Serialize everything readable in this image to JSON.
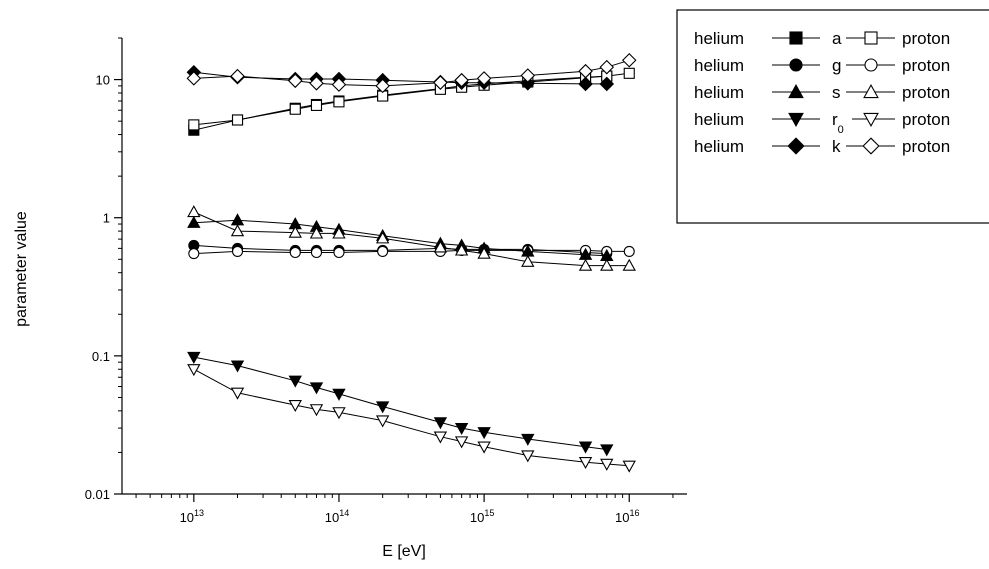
{
  "chart_data": {
    "type": "line",
    "x_scale": "log",
    "y_scale": "log",
    "xlabel": "E [eV]",
    "ylabel": "parameter value",
    "xlim": [
      3200000000000.0,
      2.5e+16
    ],
    "ylim": [
      0.01,
      20
    ],
    "x_ticks": [
      {
        "value": 10000000000000.0,
        "base": "10",
        "exp": "13"
      },
      {
        "value": 100000000000000.0,
        "base": "10",
        "exp": "14"
      },
      {
        "value": 1000000000000000.0,
        "base": "10",
        "exp": "15"
      },
      {
        "value": 1e+16,
        "base": "10",
        "exp": "16"
      }
    ],
    "y_ticks": [
      {
        "value": 0.01,
        "label": "0.01"
      },
      {
        "value": 0.1,
        "label": "0.1"
      },
      {
        "value": 1,
        "label": "1"
      },
      {
        "value": 10,
        "label": "10"
      }
    ],
    "legend": {
      "position": "top-right",
      "rows": [
        {
          "left": "helium",
          "param": "a",
          "sub": "",
          "right": "proton",
          "marker": "square"
        },
        {
          "left": "helium",
          "param": "g",
          "sub": "",
          "right": "proton",
          "marker": "circle"
        },
        {
          "left": "helium",
          "param": "s",
          "sub": "",
          "right": "proton",
          "marker": "triangle-up"
        },
        {
          "left": "helium",
          "param": "r",
          "sub": "0",
          "right": "proton",
          "marker": "triangle-down"
        },
        {
          "left": "helium",
          "param": "k",
          "sub": "",
          "right": "proton",
          "marker": "diamond"
        }
      ]
    },
    "series": [
      {
        "name": "helium a",
        "marker": "square",
        "filled": true,
        "points": [
          [
            10000000000000.0,
            4.3
          ],
          [
            20000000000000.0,
            5.1
          ],
          [
            50000000000000.0,
            6.2
          ],
          [
            70000000000000.0,
            6.6
          ],
          [
            100000000000000.0,
            7.0
          ],
          [
            200000000000000.0,
            7.7
          ],
          [
            500000000000000.0,
            8.6
          ],
          [
            700000000000000.0,
            9.0
          ],
          [
            1000000000000000.0,
            9.3
          ],
          [
            2000000000000000.0,
            9.8
          ],
          [
            5000000000000000.0,
            10.4
          ],
          [
            7000000000000000.0,
            10.6
          ]
        ]
      },
      {
        "name": "proton a",
        "marker": "square",
        "filled": false,
        "points": [
          [
            10000000000000.0,
            4.7
          ],
          [
            20000000000000.0,
            5.1
          ],
          [
            50000000000000.0,
            6.1
          ],
          [
            70000000000000.0,
            6.5
          ],
          [
            100000000000000.0,
            6.9
          ],
          [
            200000000000000.0,
            7.6
          ],
          [
            500000000000000.0,
            8.5
          ],
          [
            700000000000000.0,
            8.8
          ],
          [
            1000000000000000.0,
            9.1
          ],
          [
            2000000000000000.0,
            9.6
          ],
          [
            5000000000000000.0,
            10.3
          ],
          [
            7000000000000000.0,
            10.6
          ],
          [
            1e+16,
            11.1
          ]
        ]
      },
      {
        "name": "helium g",
        "marker": "circle",
        "filled": true,
        "points": [
          [
            10000000000000.0,
            0.63
          ],
          [
            20000000000000.0,
            0.6
          ],
          [
            50000000000000.0,
            0.58
          ],
          [
            70000000000000.0,
            0.58
          ],
          [
            100000000000000.0,
            0.58
          ],
          [
            200000000000000.0,
            0.58
          ],
          [
            500000000000000.0,
            0.6
          ],
          [
            700000000000000.0,
            0.59
          ],
          [
            1000000000000000.0,
            0.59
          ],
          [
            2000000000000000.0,
            0.59
          ],
          [
            5000000000000000.0,
            0.56
          ],
          [
            7000000000000000.0,
            0.55
          ]
        ]
      },
      {
        "name": "proton g",
        "marker": "circle",
        "filled": false,
        "points": [
          [
            10000000000000.0,
            0.55
          ],
          [
            20000000000000.0,
            0.57
          ],
          [
            50000000000000.0,
            0.56
          ],
          [
            70000000000000.0,
            0.56
          ],
          [
            100000000000000.0,
            0.56
          ],
          [
            200000000000000.0,
            0.57
          ],
          [
            500000000000000.0,
            0.57
          ],
          [
            700000000000000.0,
            0.58
          ],
          [
            1000000000000000.0,
            0.58
          ],
          [
            2000000000000000.0,
            0.58
          ],
          [
            5000000000000000.0,
            0.58
          ],
          [
            7000000000000000.0,
            0.57
          ],
          [
            1e+16,
            0.57
          ]
        ]
      },
      {
        "name": "helium s",
        "marker": "triangle-up",
        "filled": true,
        "points": [
          [
            10000000000000.0,
            0.92
          ],
          [
            20000000000000.0,
            0.96
          ],
          [
            50000000000000.0,
            0.9
          ],
          [
            70000000000000.0,
            0.86
          ],
          [
            100000000000000.0,
            0.82
          ],
          [
            200000000000000.0,
            0.74
          ],
          [
            500000000000000.0,
            0.65
          ],
          [
            700000000000000.0,
            0.63
          ],
          [
            1000000000000000.0,
            0.6
          ],
          [
            2000000000000000.0,
            0.57
          ],
          [
            5000000000000000.0,
            0.54
          ],
          [
            7000000000000000.0,
            0.53
          ]
        ]
      },
      {
        "name": "proton s",
        "marker": "triangle-up",
        "filled": false,
        "points": [
          [
            10000000000000.0,
            1.1
          ],
          [
            20000000000000.0,
            0.8
          ],
          [
            50000000000000.0,
            0.78
          ],
          [
            70000000000000.0,
            0.77
          ],
          [
            100000000000000.0,
            0.77
          ],
          [
            200000000000000.0,
            0.71
          ],
          [
            500000000000000.0,
            0.61
          ],
          [
            700000000000000.0,
            0.58
          ],
          [
            1000000000000000.0,
            0.55
          ],
          [
            2000000000000000.0,
            0.48
          ],
          [
            5000000000000000.0,
            0.45
          ],
          [
            7000000000000000.0,
            0.45
          ],
          [
            1e+16,
            0.45
          ]
        ]
      },
      {
        "name": "helium r0",
        "marker": "triangle-down",
        "filled": true,
        "points": [
          [
            10000000000000.0,
            0.098
          ],
          [
            20000000000000.0,
            0.085
          ],
          [
            50000000000000.0,
            0.066
          ],
          [
            70000000000000.0,
            0.059
          ],
          [
            100000000000000.0,
            0.053
          ],
          [
            200000000000000.0,
            0.043
          ],
          [
            500000000000000.0,
            0.033
          ],
          [
            700000000000000.0,
            0.03
          ],
          [
            1000000000000000.0,
            0.028
          ],
          [
            2000000000000000.0,
            0.025
          ],
          [
            5000000000000000.0,
            0.022
          ],
          [
            7000000000000000.0,
            0.021
          ]
        ]
      },
      {
        "name": "proton r0",
        "marker": "triangle-down",
        "filled": false,
        "points": [
          [
            10000000000000.0,
            0.08
          ],
          [
            20000000000000.0,
            0.054
          ],
          [
            50000000000000.0,
            0.044
          ],
          [
            70000000000000.0,
            0.041
          ],
          [
            100000000000000.0,
            0.039
          ],
          [
            200000000000000.0,
            0.034
          ],
          [
            500000000000000.0,
            0.026
          ],
          [
            700000000000000.0,
            0.024
          ],
          [
            1000000000000000.0,
            0.022
          ],
          [
            2000000000000000.0,
            0.019
          ],
          [
            5000000000000000.0,
            0.017
          ],
          [
            7000000000000000.0,
            0.0165
          ],
          [
            1e+16,
            0.016
          ]
        ]
      },
      {
        "name": "helium k",
        "marker": "diamond",
        "filled": true,
        "points": [
          [
            10000000000000.0,
            11.3
          ],
          [
            20000000000000.0,
            10.4
          ],
          [
            50000000000000.0,
            10.1
          ],
          [
            70000000000000.0,
            10.1
          ],
          [
            100000000000000.0,
            10.1
          ],
          [
            200000000000000.0,
            9.9
          ],
          [
            500000000000000.0,
            9.6
          ],
          [
            700000000000000.0,
            9.5
          ],
          [
            1000000000000000.0,
            9.5
          ],
          [
            2000000000000000.0,
            9.4
          ],
          [
            5000000000000000.0,
            9.3
          ],
          [
            7000000000000000.0,
            9.3
          ]
        ]
      },
      {
        "name": "proton k",
        "marker": "diamond",
        "filled": false,
        "points": [
          [
            10000000000000.0,
            10.2
          ],
          [
            20000000000000.0,
            10.6
          ],
          [
            50000000000000.0,
            9.8
          ],
          [
            70000000000000.0,
            9.4
          ],
          [
            100000000000000.0,
            9.2
          ],
          [
            200000000000000.0,
            9.0
          ],
          [
            500000000000000.0,
            9.5
          ],
          [
            700000000000000.0,
            9.9
          ],
          [
            1000000000000000.0,
            10.2
          ],
          [
            2000000000000000.0,
            10.7
          ],
          [
            5000000000000000.0,
            11.5
          ],
          [
            7000000000000000.0,
            12.3
          ],
          [
            1e+16,
            13.8
          ]
        ]
      }
    ]
  }
}
